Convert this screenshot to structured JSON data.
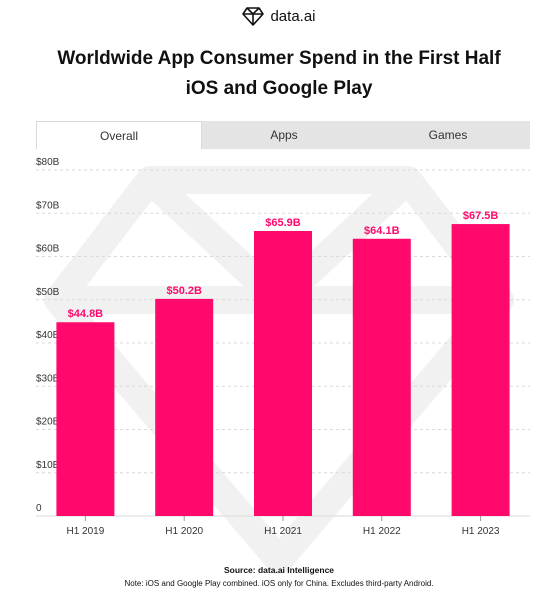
{
  "brand": {
    "name": "data.ai",
    "logo_icon": "diamond-logo-icon"
  },
  "title_line1": "Worldwide App Consumer Spend in the First Half",
  "title_line2": "iOS and Google Play",
  "tabs": [
    {
      "label": "Overall",
      "active": true
    },
    {
      "label": "Apps",
      "active": false
    },
    {
      "label": "Games",
      "active": false
    }
  ],
  "chart_data": {
    "type": "bar",
    "categories": [
      "H1 2019",
      "H1 2020",
      "H1 2021",
      "H1 2022",
      "H1 2023"
    ],
    "values": [
      44.8,
      50.2,
      65.9,
      64.1,
      67.5
    ],
    "value_labels": [
      "$44.8B",
      "$50.2B",
      "$65.9B",
      "$64.1B",
      "$67.5B"
    ],
    "ylim": [
      0,
      80
    ],
    "yticks": [
      0,
      10,
      20,
      30,
      40,
      50,
      60,
      70,
      80
    ],
    "ytick_labels": [
      "0",
      "$10B",
      "$20B",
      "$30B",
      "$40B",
      "$50B",
      "$60B",
      "$70B",
      "$80B"
    ],
    "grid": true,
    "bar_color": "#ff0a6c",
    "label_color": "#ff0a6c"
  },
  "source": "Source: data.ai Intelligence",
  "note": "Note: iOS and Google Play combined. iOS only for China. Excludes third-party Android."
}
